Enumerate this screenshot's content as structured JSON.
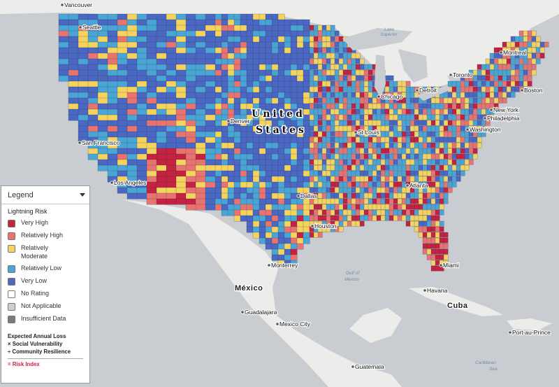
{
  "map": {
    "colors": {
      "very_high": "#c4223e",
      "relatively_high": "#e9746f",
      "relatively_moderate": "#f4d35e",
      "relatively_low": "#4aa5d4",
      "very_low": "#4a67c2",
      "water": "#c9cdd1",
      "land_outside": "#ececea"
    },
    "labels": {
      "country_us_line1": "United",
      "country_us_line2": "States",
      "country_mexico": "México",
      "country_cuba": "Cuba",
      "gulf": "Gulf of Mexico",
      "lake": "Lake Superior",
      "caribbean": "Caribbean Sea",
      "cities": [
        "Vancouver",
        "Seattle",
        "San Francisco",
        "Los Angeles",
        "Denver",
        "Dallas",
        "Houston",
        "Monterrey",
        "St Louis",
        "Chicago",
        "Detroit",
        "Toronto",
        "Montreal",
        "Boston",
        "New York",
        "Philadelphia",
        "Washington",
        "Atlanta",
        "Miami",
        "Havana",
        "Guadalajara",
        "Mexico City",
        "Guatemala",
        "Port-au-Prince"
      ]
    }
  },
  "legend": {
    "title": "Legend",
    "layer_title": "Lightning Risk",
    "items": [
      {
        "label_1": "Very High",
        "label_2": "",
        "color": "#c4223e"
      },
      {
        "label_1": "Relatively High",
        "label_2": "",
        "color": "#e9746f"
      },
      {
        "label_1": "Relatively",
        "label_2": "Moderate",
        "color": "#f4d35e"
      },
      {
        "label_1": "Relatively Low",
        "label_2": "",
        "color": "#4aa5d4"
      },
      {
        "label_1": "Very Low",
        "label_2": "",
        "color": "#4a67c2"
      },
      {
        "label_1": "No Rating",
        "label_2": "",
        "color": "#ffffff"
      },
      {
        "label_1": "Not Applicable",
        "label_2": "",
        "color": "#cfcfcf"
      },
      {
        "label_1": "Insufficient Data",
        "label_2": "",
        "color": "#7b7b7b"
      }
    ],
    "notes": {
      "line1": "Expected Annual Loss",
      "line2": "× Social Vulnerability",
      "line3": "÷ Community Resilience",
      "result": "= Risk Index"
    }
  }
}
